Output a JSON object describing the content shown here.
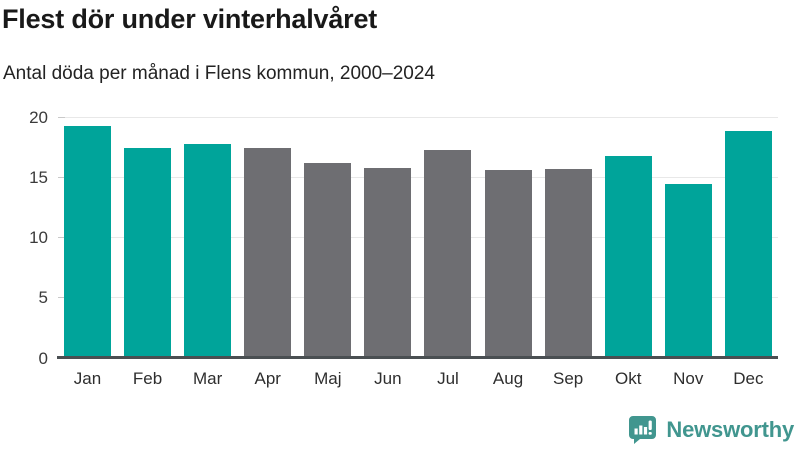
{
  "header": {
    "title": "Flest dör under vinterhalvåret",
    "subtitle": "Antal döda per månad i Flens kommun, 2000–2024"
  },
  "chart_data": {
    "type": "bar",
    "title": "Flest dör under vinterhalvåret",
    "subtitle": "Antal döda per månad i Flens kommun, 2000–2024",
    "categories": [
      "Jan",
      "Feb",
      "Mar",
      "Apr",
      "Maj",
      "Jun",
      "Jul",
      "Aug",
      "Sep",
      "Okt",
      "Nov",
      "Dec"
    ],
    "values": [
      19.3,
      17.5,
      17.8,
      17.5,
      16.2,
      15.8,
      17.3,
      15.6,
      15.7,
      16.8,
      14.5,
      18.9
    ],
    "winter_mask": [
      1,
      1,
      1,
      0,
      0,
      0,
      0,
      0,
      0,
      1,
      1,
      1
    ],
    "colors": {
      "winter": "#00a49a",
      "summer": "#6e6e72"
    },
    "xlabel": "",
    "ylabel": "",
    "ylim": [
      0,
      20
    ],
    "yticks": [
      0,
      5,
      10,
      15,
      20
    ],
    "grid": "horizontal",
    "legend": "none"
  },
  "footer": {
    "brand": "Newsworthy",
    "brand_color": "#41968f",
    "logo_icon": "bar-chart-speech-bubble-icon"
  }
}
